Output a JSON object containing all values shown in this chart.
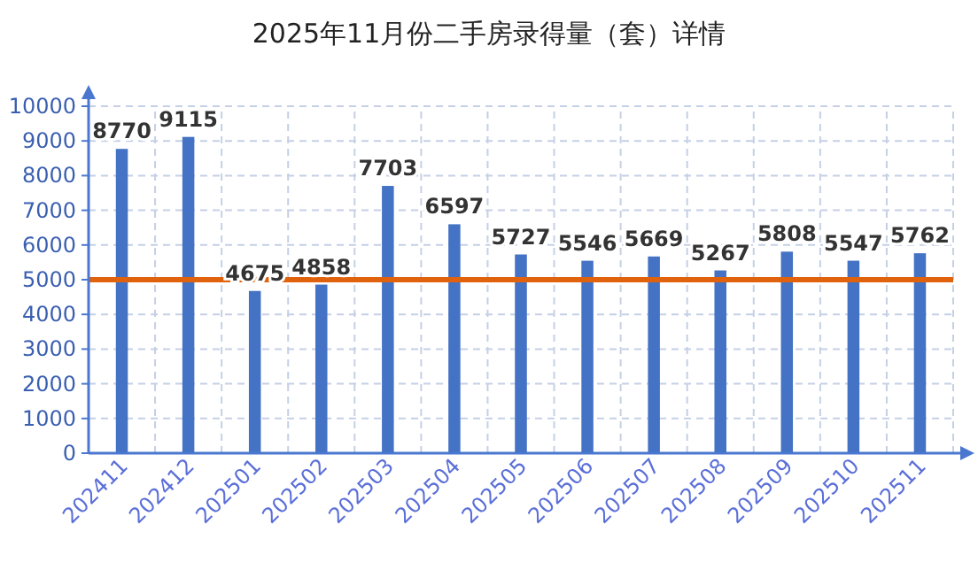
{
  "chart_data": {
    "type": "bar",
    "title": "2025年11月份二手房录得量（套）详情",
    "categories": [
      "202411",
      "202412",
      "202501",
      "202502",
      "202503",
      "202504",
      "202505",
      "202506",
      "202507",
      "202508",
      "202509",
      "202510",
      "202511"
    ],
    "values": [
      8770,
      9115,
      4675,
      4858,
      7703,
      6597,
      5727,
      5546,
      5669,
      5267,
      5808,
      5547,
      5762
    ],
    "color": "#4472c4",
    "ylim": [
      0,
      10000
    ],
    "yticks": [
      0,
      1000,
      2000,
      3000,
      4000,
      5000,
      6000,
      7000,
      8000,
      9000,
      10000
    ],
    "grid": true,
    "data_labels": true,
    "ref_lines": [
      {
        "axis": "y",
        "value": 5000,
        "color": "#e0620d"
      }
    ]
  }
}
